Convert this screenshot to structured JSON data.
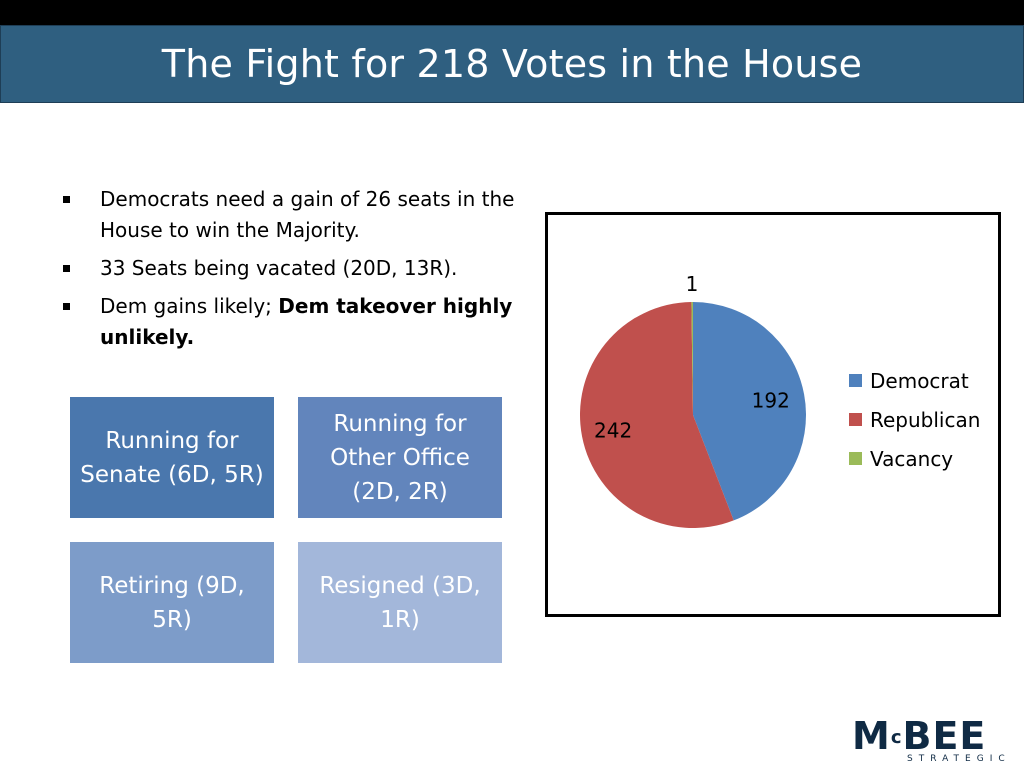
{
  "slide": {
    "title": "The Fight for 218 Votes in the House"
  },
  "bullets": [
    {
      "text": "Democrats need a gain of 26 seats in the House to win the Majority.",
      "bold": ""
    },
    {
      "text": "33 Seats being vacated (20D, 13R).",
      "bold": ""
    },
    {
      "text": "Dem gains likely; ",
      "bold": "Dem takeover highly unlikely."
    }
  ],
  "boxes": [
    "Running for Senate (6D, 5R)",
    "Running for Other Office (2D, 2R)",
    "Retiring (9D, 5R)",
    "Resigned (3D, 1R)"
  ],
  "chart_data": {
    "type": "pie",
    "categories": [
      "Democrat",
      "Republican",
      "Vacancy"
    ],
    "values": [
      192,
      242,
      1
    ],
    "colors": [
      "#4f81bd",
      "#c0504d",
      "#9bbb59"
    ],
    "data_labels": [
      "192",
      "242",
      "1"
    ],
    "legend_position": "right",
    "start_angle_deg": 0,
    "direction": "clockwise"
  },
  "logo": {
    "name_prefix": "M",
    "name_sup": "c",
    "name_suffix": "BEE",
    "tagline": "STRATEGIC"
  }
}
